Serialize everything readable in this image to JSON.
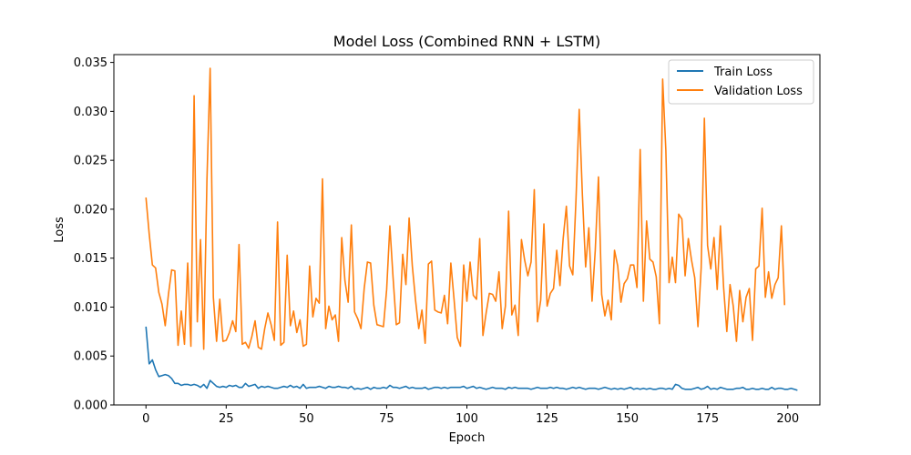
{
  "chart_data": {
    "type": "line",
    "title": "Model Loss (Combined RNN + LSTM)",
    "xlabel": "Epoch",
    "ylabel": "Loss",
    "xlim": [
      -10,
      210
    ],
    "ylim": [
      0,
      0.0358
    ],
    "xticks": [
      0,
      25,
      50,
      75,
      100,
      125,
      150,
      175,
      200
    ],
    "xtick_labels": [
      "0",
      "25",
      "50",
      "75",
      "100",
      "125",
      "150",
      "175",
      "200"
    ],
    "yticks": [
      0.0,
      0.005,
      0.01,
      0.015,
      0.02,
      0.025,
      0.03,
      0.035
    ],
    "ytick_labels": [
      "0.000",
      "0.005",
      "0.010",
      "0.015",
      "0.020",
      "0.025",
      "0.030",
      "0.035"
    ],
    "grid": false,
    "legend_position": "top-right",
    "series": [
      {
        "name": "Train Loss",
        "color": "#1f77b4",
        "values": [
          0.008,
          0.0042,
          0.0046,
          0.0036,
          0.0029,
          0.003,
          0.0031,
          0.003,
          0.0027,
          0.0022,
          0.0022,
          0.002,
          0.0021,
          0.0021,
          0.002,
          0.0021,
          0.002,
          0.0018,
          0.0021,
          0.0017,
          0.0025,
          0.0022,
          0.0019,
          0.0018,
          0.0019,
          0.0018,
          0.002,
          0.0019,
          0.002,
          0.0018,
          0.0018,
          0.0022,
          0.0019,
          0.002,
          0.0021,
          0.0017,
          0.0019,
          0.0018,
          0.0019,
          0.0018,
          0.0017,
          0.0017,
          0.0018,
          0.0019,
          0.0018,
          0.002,
          0.0018,
          0.0019,
          0.0017,
          0.0021,
          0.0017,
          0.0018,
          0.0018,
          0.0018,
          0.0019,
          0.0018,
          0.0017,
          0.0019,
          0.0018,
          0.0018,
          0.0019,
          0.0018,
          0.0018,
          0.0017,
          0.0019,
          0.0016,
          0.0017,
          0.0016,
          0.0017,
          0.0018,
          0.0016,
          0.0018,
          0.0017,
          0.0017,
          0.0018,
          0.0017,
          0.002,
          0.0018,
          0.0018,
          0.0017,
          0.0018,
          0.0019,
          0.0017,
          0.0018,
          0.0017,
          0.0017,
          0.0017,
          0.0018,
          0.0016,
          0.0017,
          0.0018,
          0.0018,
          0.0017,
          0.0018,
          0.0017,
          0.0018,
          0.0018,
          0.0018,
          0.0018,
          0.0019,
          0.0017,
          0.0018,
          0.0019,
          0.0017,
          0.0018,
          0.0017,
          0.0016,
          0.0017,
          0.0018,
          0.0017,
          0.0017,
          0.0017,
          0.0016,
          0.0018,
          0.0017,
          0.0018,
          0.0017,
          0.0017,
          0.0017,
          0.0017,
          0.0016,
          0.0017,
          0.0018,
          0.0017,
          0.0017,
          0.0017,
          0.0018,
          0.0017,
          0.0018,
          0.0017,
          0.0017,
          0.0016,
          0.0017,
          0.0018,
          0.0017,
          0.0018,
          0.0017,
          0.0016,
          0.0017,
          0.0017,
          0.0017,
          0.0016,
          0.0017,
          0.0018,
          0.0017,
          0.0016,
          0.0017,
          0.0016,
          0.0017,
          0.0016,
          0.0017,
          0.0018,
          0.0016,
          0.0017,
          0.0016,
          0.0017,
          0.0016,
          0.0017,
          0.0016,
          0.0016,
          0.0017,
          0.0017,
          0.0016,
          0.0017,
          0.0016,
          0.0021,
          0.002,
          0.0017,
          0.0016,
          0.0016,
          0.0016,
          0.0017,
          0.0018,
          0.0016,
          0.0017,
          0.0019,
          0.0016,
          0.0017,
          0.0016,
          0.0018,
          0.0017,
          0.0016,
          0.0016,
          0.0016,
          0.0017,
          0.0017,
          0.0018,
          0.0016,
          0.0016,
          0.0017,
          0.0016,
          0.0016,
          0.0017,
          0.0016,
          0.0016,
          0.0018,
          0.0016,
          0.0017,
          0.0017,
          0.0016,
          0.0016,
          0.0017,
          0.0016,
          0.0015
        ]
      },
      {
        "name": "Validation Loss",
        "color": "#ff7f0e",
        "values": [
          0.0212,
          0.0175,
          0.0143,
          0.014,
          0.0115,
          0.0103,
          0.0081,
          0.0113,
          0.0138,
          0.0137,
          0.0061,
          0.0096,
          0.0062,
          0.0145,
          0.006,
          0.0316,
          0.0085,
          0.0169,
          0.0057,
          0.023,
          0.0344,
          0.011,
          0.0065,
          0.0108,
          0.0065,
          0.0066,
          0.0074,
          0.0086,
          0.0075,
          0.0164,
          0.0062,
          0.0064,
          0.0058,
          0.007,
          0.0086,
          0.0059,
          0.0057,
          0.0078,
          0.0094,
          0.0082,
          0.0066,
          0.0187,
          0.0061,
          0.0064,
          0.0153,
          0.0081,
          0.0096,
          0.0074,
          0.0087,
          0.006,
          0.0062,
          0.0142,
          0.009,
          0.0109,
          0.0104,
          0.0231,
          0.0078,
          0.0101,
          0.0087,
          0.0092,
          0.0065,
          0.0171,
          0.0127,
          0.0105,
          0.0184,
          0.0095,
          0.0088,
          0.0078,
          0.0119,
          0.0146,
          0.0145,
          0.0102,
          0.0082,
          0.0081,
          0.008,
          0.0118,
          0.0183,
          0.013,
          0.0082,
          0.0084,
          0.0154,
          0.0123,
          0.0191,
          0.0142,
          0.0107,
          0.0078,
          0.0097,
          0.0063,
          0.0144,
          0.0147,
          0.0097,
          0.0095,
          0.0094,
          0.0112,
          0.0083,
          0.0145,
          0.0108,
          0.0069,
          0.006,
          0.0143,
          0.0106,
          0.0146,
          0.0112,
          0.0108,
          0.017,
          0.0071,
          0.0094,
          0.0114,
          0.0113,
          0.0106,
          0.0136,
          0.0078,
          0.0101,
          0.0198,
          0.0092,
          0.0102,
          0.0071,
          0.0169,
          0.0148,
          0.0132,
          0.0146,
          0.022,
          0.0085,
          0.0107,
          0.0185,
          0.0101,
          0.0114,
          0.0119,
          0.0158,
          0.0122,
          0.017,
          0.0203,
          0.0142,
          0.0133,
          0.021,
          0.0302,
          0.0214,
          0.0141,
          0.0181,
          0.0106,
          0.0158,
          0.0233,
          0.0113,
          0.0091,
          0.0107,
          0.0087,
          0.0158,
          0.0142,
          0.0105,
          0.0124,
          0.0129,
          0.0143,
          0.0143,
          0.012,
          0.0261,
          0.0106,
          0.0188,
          0.0149,
          0.0146,
          0.0131,
          0.0083,
          0.0333,
          0.026,
          0.0125,
          0.0151,
          0.0125,
          0.0195,
          0.019,
          0.0132,
          0.017,
          0.0148,
          0.013,
          0.008,
          0.014,
          0.0293,
          0.0163,
          0.0139,
          0.0171,
          0.0118,
          0.0183,
          0.012,
          0.0075,
          0.0123,
          0.0101,
          0.0065,
          0.0117,
          0.0085,
          0.011,
          0.0119,
          0.0066,
          0.0139,
          0.0142,
          0.0201,
          0.011,
          0.0136,
          0.0109,
          0.0123,
          0.013,
          0.0183,
          0.0102
        ]
      }
    ]
  }
}
